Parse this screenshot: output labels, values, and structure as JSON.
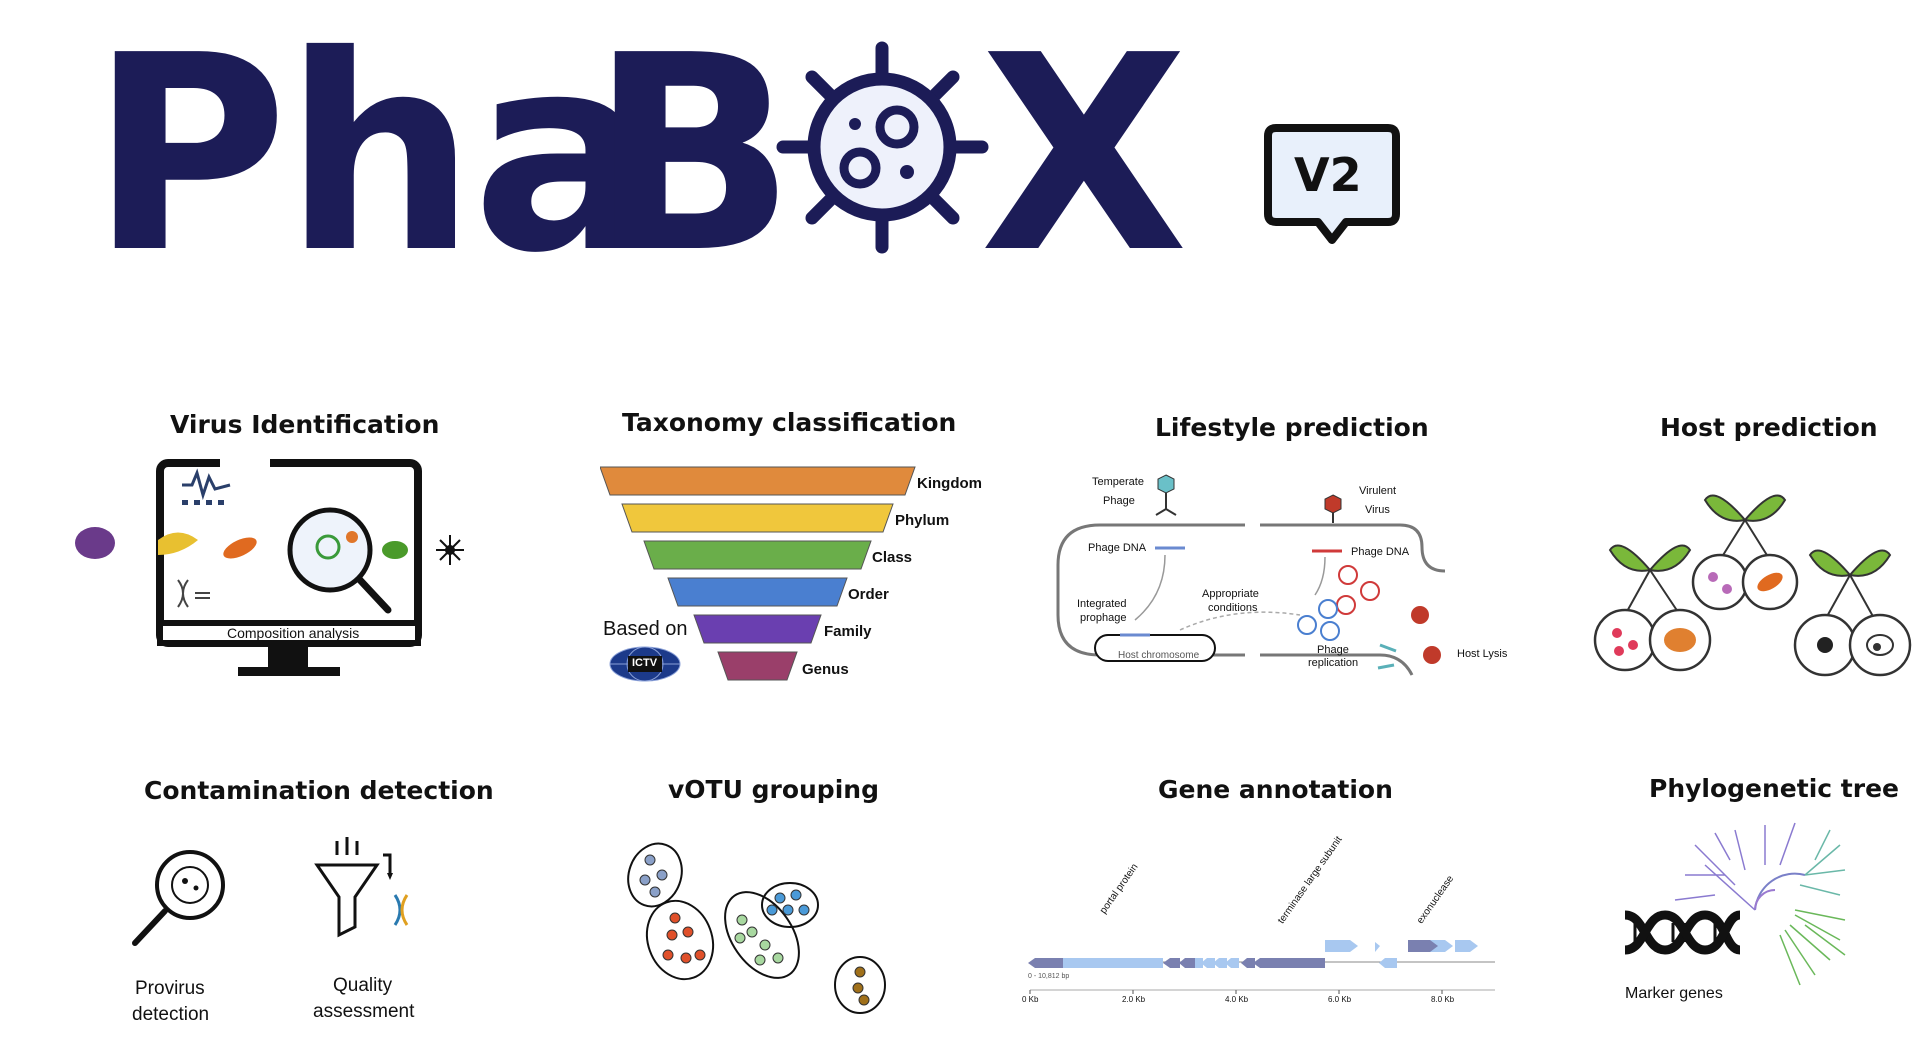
{
  "logo": {
    "part1": "Pha",
    "part2": "B",
    "part3": "X",
    "version": "V2"
  },
  "panels": {
    "virus_identification": {
      "title": "Virus Identification",
      "caption": "Composition analysis"
    },
    "taxonomy": {
      "title": "Taxonomy classification",
      "ranks": [
        "Kingdom",
        "Phylum",
        "Class",
        "Order",
        "Family",
        "Genus"
      ],
      "based_on": "Based on",
      "badge": "ICTV"
    },
    "lifestyle": {
      "title": "Lifestyle prediction",
      "temperate": "Temperate",
      "phage": "Phage",
      "virulent": "Virulent",
      "virus": "Virus",
      "phage_dna_left": "Phage DNA",
      "phage_dna_right": "Phage DNA",
      "integrated": "Integrated",
      "prophage": "prophage",
      "appropriate": "Appropriate",
      "conditions": "conditions",
      "host_chromosome": "Host chromosome",
      "phage_rep_1": "Phage",
      "phage_rep_2": "replication",
      "host_lysis": "Host Lysis"
    },
    "host": {
      "title": "Host prediction"
    },
    "contamination": {
      "title": "Contamination detection",
      "provirus_1": "Provirus",
      "provirus_2": "detection",
      "quality_1": "Quality",
      "quality_2": "assessment"
    },
    "votu": {
      "title": "vOTU grouping"
    },
    "gene": {
      "title": "Gene annotation",
      "genes": [
        "portal protein",
        "terminase large subunit",
        "exonuclease"
      ],
      "axis_ticks": [
        "0 Kb",
        "2.0 Kb",
        "4.0 Kb",
        "6.0 Kb",
        "8.0 Kb"
      ],
      "range": "0 - 10,812 bp"
    },
    "phylo": {
      "title": "Phylogenetic tree",
      "marker": "Marker genes"
    }
  },
  "colors": {
    "logo_navy": "#1c1c57",
    "kingdom": "#e08a3c",
    "phylum": "#f0c73c",
    "class": "#6aae4a",
    "order": "#4a7fd0",
    "family": "#6a3fb0",
    "genus": "#9a3f6a"
  }
}
